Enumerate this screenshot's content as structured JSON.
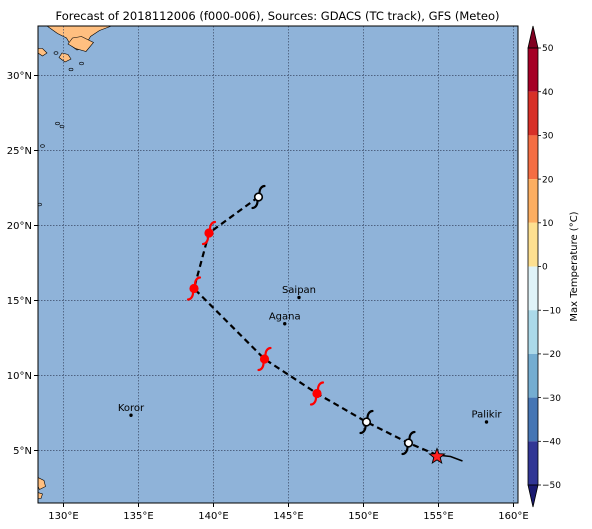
{
  "title": "Forecast of 2018112006 (f000-006), Sources: GDACS (TC track), GFS (Meteo)",
  "colors": {
    "ocean": "#8fb3d9",
    "land": "#ffbf80",
    "track": "#000000",
    "forecast_symbol": "#ff0000",
    "observed_symbol": "#000000",
    "current_star": "#ff2020"
  },
  "map": {
    "lon_range": [
      128.3,
      160.3
    ],
    "lat_range": [
      1.5,
      33.3
    ],
    "lon_ticks": [
      {
        "value": 130,
        "label": "130°E"
      },
      {
        "value": 135,
        "label": "135°E"
      },
      {
        "value": 140,
        "label": "140°E"
      },
      {
        "value": 145,
        "label": "145°E"
      },
      {
        "value": 150,
        "label": "150°E"
      },
      {
        "value": 155,
        "label": "155°E"
      },
      {
        "value": 160,
        "label": "160°E"
      }
    ],
    "lat_ticks": [
      {
        "value": 5,
        "label": "5°N"
      },
      {
        "value": 10,
        "label": "10°N"
      },
      {
        "value": 15,
        "label": "15°N"
      },
      {
        "value": 20,
        "label": "20°N"
      },
      {
        "value": 25,
        "label": "25°N"
      },
      {
        "value": 30,
        "label": "30°N"
      }
    ],
    "places": [
      {
        "name": "Saipan",
        "lon": 145.7,
        "lat": 15.2
      },
      {
        "name": "Agana",
        "lon": 144.75,
        "lat": 13.45
      },
      {
        "name": "Koror",
        "lon": 134.5,
        "lat": 7.35
      },
      {
        "name": "Palikir",
        "lon": 158.2,
        "lat": 6.9
      }
    ],
    "track": [
      [
        156.6,
        4.3
      ],
      [
        155.8,
        4.6
      ],
      [
        154.9,
        4.7
      ],
      [
        153.0,
        5.5
      ],
      [
        150.2,
        6.9
      ],
      [
        146.9,
        8.8
      ],
      [
        143.4,
        11.1
      ],
      [
        138.7,
        15.8
      ],
      [
        139.7,
        19.5
      ],
      [
        143.0,
        21.9
      ]
    ],
    "observed_positions": [
      [
        153.0,
        5.5
      ],
      [
        150.2,
        6.9
      ],
      [
        143.0,
        21.9
      ]
    ],
    "forecast_positions": [
      [
        146.9,
        8.8
      ],
      [
        143.4,
        11.1
      ],
      [
        138.7,
        15.8
      ],
      [
        139.7,
        19.5
      ]
    ],
    "current_position": [
      154.9,
      4.6
    ]
  },
  "colorbar": {
    "label": "Max Temperature (°C)",
    "range": [
      -50,
      50
    ],
    "ticks": [
      50,
      40,
      30,
      20,
      10,
      0,
      -10,
      -20,
      -30,
      -40,
      -50
    ],
    "bands": [
      {
        "from": 40,
        "to": 50,
        "color": "#a50026"
      },
      {
        "from": 30,
        "to": 40,
        "color": "#d73027"
      },
      {
        "from": 20,
        "to": 30,
        "color": "#f46d43"
      },
      {
        "from": 10,
        "to": 20,
        "color": "#fdae61"
      },
      {
        "from": 0,
        "to": 10,
        "color": "#fee090"
      },
      {
        "from": -10,
        "to": 0,
        "color": "#e0f3f8"
      },
      {
        "from": -20,
        "to": -10,
        "color": "#abd9e9"
      },
      {
        "from": -30,
        "to": -20,
        "color": "#74add1"
      },
      {
        "from": -40,
        "to": -30,
        "color": "#4575b4"
      },
      {
        "from": -50,
        "to": -40,
        "color": "#313695"
      }
    ],
    "over_color": "#800020",
    "under_color": "#1a1a70"
  }
}
